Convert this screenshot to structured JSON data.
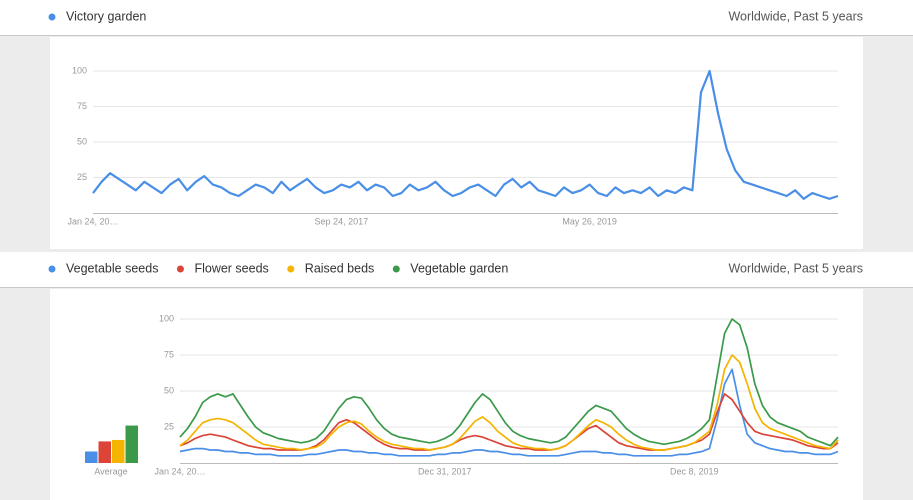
{
  "chart_data": [
    {
      "type": "line",
      "subtitle": "Worldwide, Past 5 years",
      "ylim": [
        0,
        100
      ],
      "yticks": [
        25,
        50,
        75,
        100
      ],
      "grid": true,
      "categories": [
        "Jan 24, 20…",
        null,
        null,
        null,
        null,
        null,
        null,
        null,
        null,
        null,
        null,
        null,
        null,
        null,
        null,
        null,
        null,
        null,
        null,
        null,
        null,
        null,
        null,
        null,
        null,
        null,
        null,
        null,
        null,
        "Sep 24, 2017",
        null,
        null,
        null,
        null,
        null,
        null,
        null,
        null,
        null,
        null,
        null,
        null,
        null,
        null,
        null,
        null,
        null,
        null,
        null,
        null,
        null,
        null,
        null,
        null,
        null,
        null,
        null,
        null,
        "May 26, 2019",
        null,
        null,
        null,
        null,
        null,
        null,
        null,
        null,
        null,
        null,
        null,
        null,
        null,
        null,
        null,
        null,
        null,
        null,
        null,
        null,
        null,
        null,
        null,
        null,
        null,
        null,
        null,
        null,
        null
      ],
      "series": [
        {
          "name": "Victory garden",
          "color": "#4a8fe7",
          "values": [
            14,
            22,
            28,
            24,
            20,
            16,
            22,
            18,
            14,
            20,
            24,
            16,
            22,
            26,
            20,
            18,
            14,
            12,
            16,
            20,
            18,
            14,
            22,
            16,
            20,
            24,
            18,
            14,
            16,
            20,
            18,
            22,
            16,
            20,
            18,
            12,
            14,
            20,
            16,
            18,
            22,
            16,
            12,
            14,
            18,
            20,
            16,
            12,
            20,
            24,
            18,
            22,
            16,
            14,
            12,
            18,
            14,
            16,
            20,
            14,
            12,
            18,
            14,
            16,
            14,
            18,
            12,
            16,
            14,
            18,
            16,
            85,
            100,
            70,
            45,
            30,
            22,
            20,
            18,
            16,
            14,
            12,
            16,
            10,
            14,
            12,
            10,
            12
          ]
        }
      ]
    },
    {
      "type": "line",
      "subtitle": "Worldwide, Past 5 years",
      "ylim": [
        0,
        100
      ],
      "yticks": [
        25,
        50,
        75,
        100
      ],
      "grid": true,
      "average_label": "Average",
      "categories": [
        "Jan 24, 20…",
        null,
        null,
        null,
        null,
        null,
        null,
        null,
        null,
        null,
        null,
        null,
        null,
        null,
        null,
        null,
        null,
        null,
        null,
        null,
        null,
        null,
        null,
        null,
        null,
        null,
        null,
        null,
        null,
        null,
        null,
        null,
        null,
        null,
        null,
        "Dec 31, 2017",
        null,
        null,
        null,
        null,
        null,
        null,
        null,
        null,
        null,
        null,
        null,
        null,
        null,
        null,
        null,
        null,
        null,
        null,
        null,
        null,
        null,
        null,
        null,
        null,
        null,
        null,
        null,
        null,
        null,
        null,
        null,
        null,
        "Dec 8, 2019",
        null,
        null,
        null,
        null,
        null,
        null,
        null,
        null,
        null,
        null,
        null,
        null,
        null,
        null,
        null,
        null,
        null,
        null,
        null
      ],
      "series": [
        {
          "name": "Vegetable seeds",
          "color": "#4a8fe7",
          "average": 8,
          "values": [
            8,
            9,
            10,
            10,
            9,
            9,
            8,
            8,
            7,
            7,
            6,
            6,
            6,
            5,
            5,
            5,
            5,
            6,
            6,
            7,
            8,
            9,
            9,
            8,
            8,
            7,
            7,
            6,
            6,
            5,
            5,
            5,
            5,
            5,
            6,
            6,
            7,
            7,
            8,
            9,
            9,
            8,
            8,
            7,
            6,
            6,
            5,
            5,
            5,
            5,
            5,
            6,
            7,
            8,
            8,
            8,
            7,
            7,
            6,
            6,
            5,
            5,
            5,
            5,
            5,
            5,
            6,
            6,
            7,
            8,
            10,
            30,
            55,
            65,
            40,
            20,
            14,
            12,
            10,
            9,
            8,
            8,
            7,
            7,
            6,
            6,
            6,
            8
          ]
        },
        {
          "name": "Flower seeds",
          "color": "#db4437",
          "average": 15,
          "values": [
            12,
            14,
            17,
            19,
            20,
            19,
            18,
            16,
            14,
            12,
            11,
            10,
            10,
            9,
            9,
            9,
            9,
            10,
            12,
            16,
            22,
            28,
            30,
            28,
            24,
            20,
            16,
            13,
            11,
            10,
            10,
            9,
            9,
            9,
            10,
            11,
            13,
            16,
            18,
            19,
            18,
            16,
            14,
            12,
            11,
            10,
            10,
            9,
            9,
            9,
            10,
            12,
            16,
            20,
            24,
            26,
            22,
            18,
            14,
            12,
            11,
            10,
            9,
            9,
            9,
            10,
            11,
            12,
            14,
            16,
            20,
            35,
            48,
            44,
            36,
            28,
            22,
            20,
            19,
            18,
            17,
            16,
            14,
            12,
            11,
            10,
            10,
            14
          ]
        },
        {
          "name": "Raised beds",
          "color": "#f4b400",
          "average": 16,
          "values": [
            12,
            16,
            22,
            28,
            30,
            31,
            30,
            28,
            24,
            20,
            16,
            13,
            12,
            11,
            10,
            10,
            9,
            10,
            11,
            14,
            20,
            25,
            28,
            29,
            27,
            22,
            18,
            15,
            13,
            12,
            11,
            10,
            10,
            9,
            10,
            11,
            13,
            17,
            23,
            29,
            32,
            28,
            22,
            18,
            14,
            12,
            11,
            10,
            10,
            9,
            10,
            12,
            16,
            21,
            26,
            30,
            28,
            25,
            20,
            16,
            13,
            11,
            10,
            9,
            9,
            10,
            11,
            12,
            14,
            18,
            22,
            40,
            65,
            75,
            70,
            55,
            38,
            28,
            24,
            22,
            20,
            18,
            16,
            14,
            12,
            11,
            10,
            16
          ]
        },
        {
          "name": "Vegetable garden",
          "color": "#3b9a4a",
          "average": 26,
          "values": [
            18,
            24,
            32,
            42,
            46,
            48,
            46,
            48,
            40,
            32,
            25,
            21,
            19,
            17,
            16,
            15,
            14,
            15,
            17,
            22,
            30,
            38,
            44,
            46,
            45,
            38,
            30,
            24,
            20,
            18,
            17,
            16,
            15,
            14,
            15,
            17,
            20,
            26,
            34,
            42,
            48,
            44,
            36,
            28,
            22,
            19,
            17,
            16,
            15,
            14,
            15,
            18,
            24,
            30,
            36,
            40,
            38,
            36,
            30,
            24,
            20,
            17,
            15,
            14,
            13,
            14,
            15,
            17,
            20,
            24,
            30,
            60,
            90,
            100,
            96,
            80,
            55,
            40,
            32,
            28,
            26,
            24,
            22,
            18,
            16,
            14,
            12,
            18
          ]
        }
      ]
    }
  ]
}
